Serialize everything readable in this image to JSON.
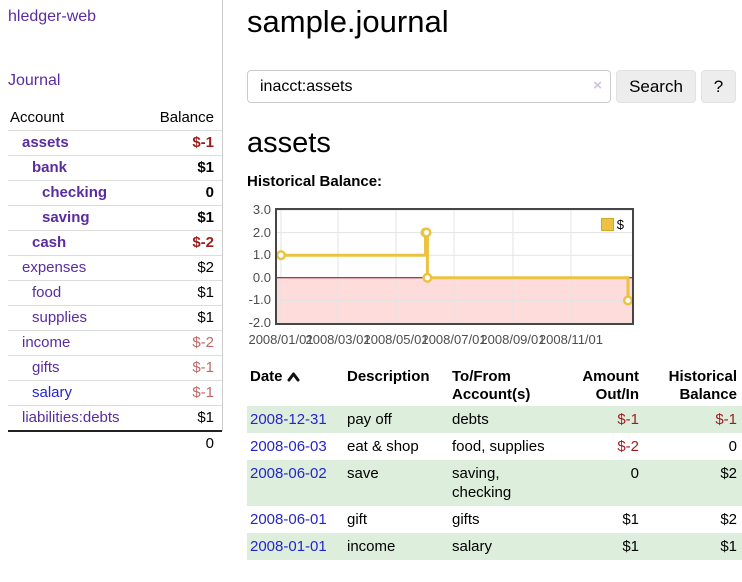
{
  "app": {
    "brand": "hledger-web",
    "journal_link": "Journal"
  },
  "colors": {
    "accent_purple": "#5a2ca0",
    "link_blue": "#2525cc",
    "negative_strong": "#9d1d1d",
    "negative_soft": "#c06868",
    "row_green": "#ddeedd",
    "chart_gold": "#EDC240",
    "chart_negative_fill": "#ffdcdc",
    "chart_zero_line": "#8b0000"
  },
  "sidebar": {
    "accounts_header": {
      "account": "Account",
      "balance": "Balance"
    },
    "rows": [
      {
        "name": "assets",
        "depth": 1,
        "balance": "$-1",
        "bold": true,
        "balance_tone": "neg-strong",
        "link_tone": "purple"
      },
      {
        "name": "bank",
        "depth": 2,
        "balance": "$1",
        "bold": true,
        "balance_tone": "normal",
        "link_tone": "purple"
      },
      {
        "name": "checking",
        "depth": 3,
        "balance": "0",
        "bold": true,
        "balance_tone": "normal",
        "link_tone": "purple"
      },
      {
        "name": "saving",
        "depth": 3,
        "balance": "$1",
        "bold": true,
        "balance_tone": "normal",
        "link_tone": "purple"
      },
      {
        "name": "cash",
        "depth": 2,
        "balance": "$-2",
        "bold": true,
        "balance_tone": "neg-strong",
        "link_tone": "purple"
      },
      {
        "name": "expenses",
        "depth": 1,
        "balance": "$2",
        "bold": false,
        "balance_tone": "normal",
        "link_tone": "purple"
      },
      {
        "name": "food",
        "depth": 2,
        "balance": "$1",
        "bold": false,
        "balance_tone": "normal",
        "link_tone": "purple"
      },
      {
        "name": "supplies",
        "depth": 2,
        "balance": "$1",
        "bold": false,
        "balance_tone": "normal",
        "link_tone": "purple"
      },
      {
        "name": "income",
        "depth": 1,
        "balance": "$-2",
        "bold": false,
        "balance_tone": "neg-soft",
        "link_tone": "purple"
      },
      {
        "name": "gifts",
        "depth": 2,
        "balance": "$-1",
        "bold": false,
        "balance_tone": "neg-soft",
        "link_tone": "purple"
      },
      {
        "name": "salary",
        "depth": 2,
        "balance": "$-1",
        "bold": false,
        "balance_tone": "neg-soft",
        "link_tone": "blue"
      },
      {
        "name": "liabilities:debts",
        "depth": 1,
        "balance": "$1",
        "bold": false,
        "balance_tone": "normal",
        "link_tone": "purple"
      }
    ],
    "total": "0"
  },
  "header": {
    "title": "sample.journal"
  },
  "search": {
    "value": "inacct:assets",
    "clear_icon": "×",
    "button_label": "Search",
    "help_label": "?"
  },
  "icons": {
    "sort_ascending": "chevron-up",
    "clear_search": "x-mark"
  },
  "account_page": {
    "title": "assets",
    "chart_title": "Historical Balance:"
  },
  "chart_data": {
    "type": "line",
    "step": true,
    "title": "Historical Balance:",
    "x_range": [
      "2008-01-01",
      "2008-12-31"
    ],
    "ylim": [
      -2,
      3
    ],
    "y_ticks": [
      3.0,
      2.0,
      1.0,
      0.0,
      -1.0,
      -2.0
    ],
    "y_tick_labels": [
      "3.0",
      "2.0",
      "1.0",
      "0.0",
      "-1.0",
      "-2.0"
    ],
    "x_ticks": [
      {
        "date": "2008-01-01",
        "label": "2008/01/01"
      },
      {
        "date": "2008-03-01",
        "label": "2008/03/01"
      },
      {
        "date": "2008-05-01",
        "label": "2008/05/01"
      },
      {
        "date": "2008-07-01",
        "label": "2008/07/01"
      },
      {
        "date": "2008-09-01",
        "label": "2008/09/01"
      },
      {
        "date": "2008-11-01",
        "label": "2008/11/01"
      }
    ],
    "series": [
      {
        "name": "$",
        "color": "#EDC240",
        "points": [
          {
            "date": "2008-01-01",
            "value": 1
          },
          {
            "date": "2008-06-01",
            "value": 2
          },
          {
            "date": "2008-06-02",
            "value": 2
          },
          {
            "date": "2008-06-03",
            "value": 0
          },
          {
            "date": "2008-12-31",
            "value": -1
          }
        ]
      }
    ],
    "grid": true,
    "legend_position": "top-right",
    "negative_region_fill": "#ffdcdc",
    "zero_line_color": "#8b0000"
  },
  "register": {
    "headers": [
      "Date",
      "Description",
      "To/From Account(s)",
      "Amount Out/In",
      "Historical Balance"
    ],
    "rows": [
      {
        "date": "2008-12-31",
        "description": "pay off",
        "accounts": "debts",
        "amount": "$-1",
        "amount_tone": "neg-strong",
        "balance": "$-1",
        "balance_tone": "neg-strong"
      },
      {
        "date": "2008-06-03",
        "description": "eat & shop",
        "accounts": "food, supplies",
        "amount": "$-2",
        "amount_tone": "neg-strong",
        "balance": "0",
        "balance_tone": "normal"
      },
      {
        "date": "2008-06-02",
        "description": "save",
        "accounts": "saving, checking",
        "amount": "0",
        "amount_tone": "normal",
        "balance": "$2",
        "balance_tone": "normal"
      },
      {
        "date": "2008-06-01",
        "description": "gift",
        "accounts": "gifts",
        "amount": "$1",
        "amount_tone": "normal",
        "balance": "$2",
        "balance_tone": "normal"
      },
      {
        "date": "2008-01-01",
        "description": "income",
        "accounts": "salary",
        "amount": "$1",
        "amount_tone": "normal",
        "balance": "$1",
        "balance_tone": "normal"
      }
    ]
  }
}
